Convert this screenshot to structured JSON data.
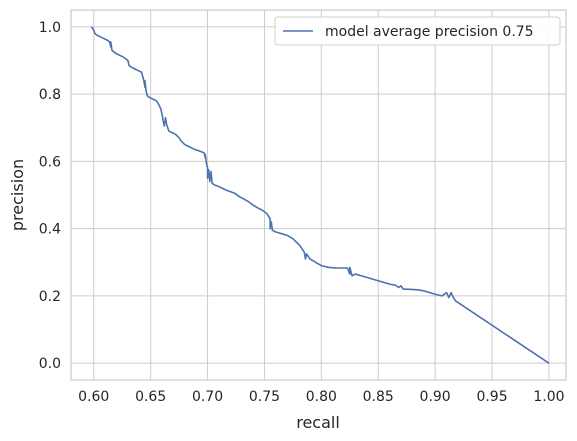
{
  "chart_data": {
    "type": "line",
    "title": "",
    "xlabel": "recall",
    "ylabel": "precision",
    "xlim": [
      0.58,
      1.015
    ],
    "ylim": [
      -0.05,
      1.05
    ],
    "xticks": [
      0.6,
      0.65,
      0.7,
      0.75,
      0.8,
      0.85,
      0.9,
      0.95,
      1.0
    ],
    "xtick_labels": [
      "0.60",
      "0.65",
      "0.70",
      "0.75",
      "0.80",
      "0.85",
      "0.90",
      "0.95",
      "1.00"
    ],
    "yticks": [
      0.0,
      0.2,
      0.4,
      0.6,
      0.8,
      1.0
    ],
    "ytick_labels": [
      "0.0",
      "0.2",
      "0.4",
      "0.6",
      "0.8",
      "1.0"
    ],
    "grid": true,
    "legend_position": "top-right",
    "colors": {
      "series": "#4c72b0",
      "grid": "#cccccc",
      "axes": "#cccccc",
      "text": "#262626"
    },
    "series": [
      {
        "name": "model average precision 0.75",
        "points": [
          [
            0.598,
            1.0
          ],
          [
            0.6,
            0.99
          ],
          [
            0.601,
            0.98
          ],
          [
            0.603,
            0.975
          ],
          [
            0.606,
            0.97
          ],
          [
            0.609,
            0.965
          ],
          [
            0.612,
            0.96
          ],
          [
            0.614,
            0.955
          ],
          [
            0.615,
            0.94
          ],
          [
            0.615,
            0.955
          ],
          [
            0.616,
            0.93
          ],
          [
            0.618,
            0.925
          ],
          [
            0.62,
            0.92
          ],
          [
            0.623,
            0.915
          ],
          [
            0.626,
            0.91
          ],
          [
            0.628,
            0.905
          ],
          [
            0.63,
            0.9
          ],
          [
            0.631,
            0.885
          ],
          [
            0.633,
            0.88
          ],
          [
            0.636,
            0.875
          ],
          [
            0.639,
            0.87
          ],
          [
            0.642,
            0.865
          ],
          [
            0.644,
            0.84
          ],
          [
            0.645,
            0.82
          ],
          [
            0.645,
            0.84
          ],
          [
            0.646,
            0.81
          ],
          [
            0.647,
            0.795
          ],
          [
            0.649,
            0.79
          ],
          [
            0.652,
            0.785
          ],
          [
            0.655,
            0.78
          ],
          [
            0.657,
            0.77
          ],
          [
            0.659,
            0.755
          ],
          [
            0.66,
            0.74
          ],
          [
            0.661,
            0.72
          ],
          [
            0.662,
            0.705
          ],
          [
            0.663,
            0.73
          ],
          [
            0.664,
            0.71
          ],
          [
            0.666,
            0.69
          ],
          [
            0.669,
            0.685
          ],
          [
            0.672,
            0.68
          ],
          [
            0.675,
            0.67
          ],
          [
            0.677,
            0.66
          ],
          [
            0.68,
            0.65
          ],
          [
            0.683,
            0.645
          ],
          [
            0.686,
            0.64
          ],
          [
            0.689,
            0.635
          ],
          [
            0.692,
            0.632
          ],
          [
            0.695,
            0.628
          ],
          [
            0.697,
            0.625
          ],
          [
            0.698,
            0.61
          ],
          [
            0.698,
            0.62
          ],
          [
            0.699,
            0.595
          ],
          [
            0.7,
            0.58
          ],
          [
            0.7,
            0.55
          ],
          [
            0.701,
            0.575
          ],
          [
            0.702,
            0.54
          ],
          [
            0.703,
            0.57
          ],
          [
            0.704,
            0.535
          ],
          [
            0.706,
            0.53
          ],
          [
            0.71,
            0.525
          ],
          [
            0.713,
            0.52
          ],
          [
            0.716,
            0.515
          ],
          [
            0.72,
            0.51
          ],
          [
            0.724,
            0.505
          ],
          [
            0.728,
            0.495
          ],
          [
            0.732,
            0.488
          ],
          [
            0.736,
            0.48
          ],
          [
            0.74,
            0.47
          ],
          [
            0.745,
            0.46
          ],
          [
            0.748,
            0.455
          ],
          [
            0.752,
            0.445
          ],
          [
            0.755,
            0.43
          ],
          [
            0.755,
            0.4
          ],
          [
            0.756,
            0.42
          ],
          [
            0.757,
            0.395
          ],
          [
            0.76,
            0.39
          ],
          [
            0.765,
            0.385
          ],
          [
            0.77,
            0.38
          ],
          [
            0.775,
            0.37
          ],
          [
            0.778,
            0.36
          ],
          [
            0.781,
            0.35
          ],
          [
            0.783,
            0.34
          ],
          [
            0.785,
            0.33
          ],
          [
            0.786,
            0.31
          ],
          [
            0.787,
            0.325
          ],
          [
            0.79,
            0.31
          ],
          [
            0.795,
            0.3
          ],
          [
            0.8,
            0.29
          ],
          [
            0.806,
            0.285
          ],
          [
            0.812,
            0.283
          ],
          [
            0.818,
            0.283
          ],
          [
            0.823,
            0.283
          ],
          [
            0.825,
            0.265
          ],
          [
            0.825,
            0.285
          ],
          [
            0.827,
            0.26
          ],
          [
            0.83,
            0.265
          ],
          [
            0.835,
            0.26
          ],
          [
            0.84,
            0.255
          ],
          [
            0.845,
            0.25
          ],
          [
            0.85,
            0.245
          ],
          [
            0.855,
            0.24
          ],
          [
            0.86,
            0.235
          ],
          [
            0.865,
            0.232
          ],
          [
            0.868,
            0.225
          ],
          [
            0.87,
            0.23
          ],
          [
            0.872,
            0.22
          ],
          [
            0.875,
            0.22
          ],
          [
            0.885,
            0.218
          ],
          [
            0.89,
            0.215
          ],
          [
            0.9,
            0.205
          ],
          [
            0.906,
            0.2
          ],
          [
            0.91,
            0.21
          ],
          [
            0.912,
            0.195
          ],
          [
            0.914,
            0.21
          ],
          [
            0.916,
            0.195
          ],
          [
            0.918,
            0.185
          ],
          [
            1.0,
            0.0
          ]
        ]
      }
    ]
  }
}
